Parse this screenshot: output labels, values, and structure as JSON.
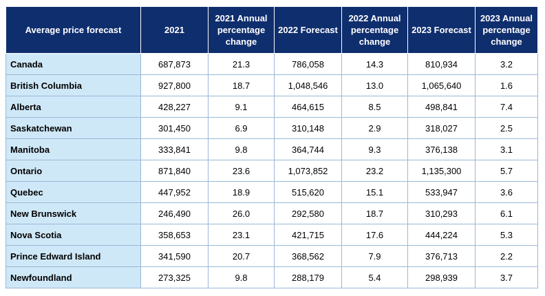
{
  "table": {
    "headers": [
      "Average price forecast",
      "2021",
      "2021 Annual percentage change",
      "2022 Forecast",
      "2022 Annual percentage change",
      "2023 Forecast",
      "2023 Annual percentage change"
    ],
    "rows": [
      [
        "Canada",
        "687,873",
        "21.3",
        "786,058",
        "14.3",
        "810,934",
        "3.2"
      ],
      [
        "British Columbia",
        "927,800",
        "18.7",
        "1,048,546",
        "13.0",
        "1,065,640",
        "1.6"
      ],
      [
        "Alberta",
        "428,227",
        "9.1",
        "464,615",
        "8.5",
        "498,841",
        "7.4"
      ],
      [
        "Saskatchewan",
        "301,450",
        "6.9",
        "310,148",
        "2.9",
        "318,027",
        "2.5"
      ],
      [
        "Manitoba",
        "333,841",
        "9.8",
        "364,744",
        "9.3",
        "376,138",
        "3.1"
      ],
      [
        "Ontario",
        "871,840",
        "23.6",
        "1,073,852",
        "23.2",
        "1,135,300",
        "5.7"
      ],
      [
        "Quebec",
        "447,952",
        "18.9",
        "515,620",
        "15.1",
        "533,947",
        "3.6"
      ],
      [
        "New Brunswick",
        "246,490",
        "26.0",
        "292,580",
        "18.7",
        "310,293",
        "6.1"
      ],
      [
        "Nova Scotia",
        "358,653",
        "23.1",
        "421,715",
        "17.6",
        "444,224",
        "5.3"
      ],
      [
        "Prince Edward Island",
        "341,590",
        "20.7",
        "368,562",
        "7.9",
        "376,713",
        "2.2"
      ],
      [
        "Newfoundland",
        "273,325",
        "9.8",
        "288,179",
        "5.4",
        "298,939",
        "3.7"
      ]
    ]
  },
  "colors": {
    "header_bg": "#0f2e6e",
    "header_text": "#ffffff",
    "region_bg": "#cfe8f8",
    "border": "#9bb7d6"
  }
}
